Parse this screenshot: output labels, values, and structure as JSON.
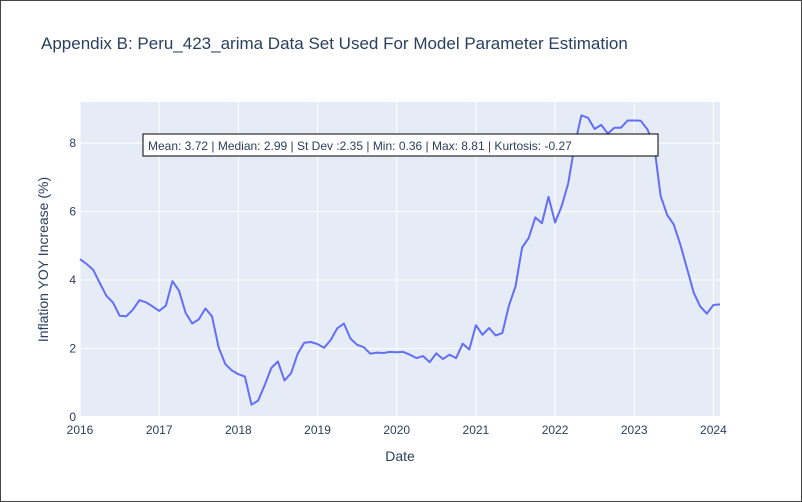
{
  "chart_data": {
    "type": "line",
    "title": "Appendix B: Peru_423_arima Data Set Used For Model Parameter Estimation",
    "xlabel": "Date",
    "ylabel": "Inflation YOY Increase (%)",
    "x_tick_labels": [
      "2016",
      "2017",
      "2018",
      "2019",
      "2020",
      "2021",
      "2022",
      "2023",
      "2024"
    ],
    "y_tick_labels": [
      "0",
      "2",
      "4",
      "6",
      "8"
    ],
    "xlim": [
      "2016-01",
      "2024-01"
    ],
    "ylim": [
      0,
      9.2
    ],
    "grid": true,
    "line_color": "#636efa",
    "plot_bg": "#e5ecf6",
    "annotation": "Mean: 3.72 | Median: 2.99 | St Dev :2.35 | Min: 0.36 | Max: 8.81 | Kurtosis: -0.27",
    "series": [
      {
        "x": [
          "2016-01",
          "2016-02",
          "2016-03",
          "2016-04",
          "2016-05",
          "2016-06",
          "2016-07",
          "2016-08",
          "2016-09",
          "2016-10",
          "2016-11",
          "2016-12",
          "2017-01",
          "2017-02",
          "2017-03",
          "2017-04",
          "2017-05",
          "2017-06",
          "2017-07",
          "2017-08",
          "2017-09",
          "2017-10",
          "2017-11",
          "2017-12",
          "2018-01",
          "2018-02",
          "2018-03",
          "2018-04",
          "2018-05",
          "2018-06",
          "2018-07",
          "2018-08",
          "2018-09",
          "2018-10",
          "2018-11",
          "2018-12",
          "2019-01",
          "2019-02",
          "2019-03",
          "2019-04",
          "2019-05",
          "2019-06",
          "2019-07",
          "2019-08",
          "2019-09",
          "2019-10",
          "2019-11",
          "2019-12",
          "2020-01",
          "2020-02",
          "2020-03",
          "2020-04",
          "2020-05",
          "2020-06",
          "2020-07",
          "2020-08",
          "2020-09",
          "2020-10",
          "2020-11",
          "2020-12",
          "2021-01",
          "2021-02",
          "2021-03",
          "2021-04",
          "2021-05",
          "2021-06",
          "2021-07",
          "2021-08",
          "2021-09",
          "2021-10",
          "2021-11",
          "2021-12",
          "2022-01",
          "2022-02",
          "2022-03",
          "2022-04",
          "2022-05",
          "2022-06",
          "2022-07",
          "2022-08",
          "2022-09",
          "2022-10",
          "2022-11",
          "2022-12",
          "2023-01",
          "2023-02",
          "2023-03",
          "2023-04",
          "2023-05",
          "2023-06",
          "2023-07",
          "2023-08",
          "2023-09",
          "2023-10",
          "2023-11",
          "2023-12",
          "2024-01",
          "2024-02"
        ],
        "values": [
          4.61,
          4.47,
          4.3,
          3.91,
          3.54,
          3.34,
          2.96,
          2.94,
          3.13,
          3.41,
          3.35,
          3.23,
          3.1,
          3.25,
          3.97,
          3.69,
          3.04,
          2.73,
          2.85,
          3.17,
          2.94,
          2.04,
          1.55,
          1.36,
          1.25,
          1.18,
          0.36,
          0.48,
          0.93,
          1.43,
          1.62,
          1.07,
          1.28,
          1.85,
          2.17,
          2.19,
          2.13,
          2.02,
          2.25,
          2.59,
          2.73,
          2.29,
          2.11,
          2.04,
          1.85,
          1.88,
          1.87,
          1.9,
          1.89,
          1.9,
          1.82,
          1.72,
          1.78,
          1.6,
          1.86,
          1.69,
          1.82,
          1.72,
          2.14,
          1.97,
          2.68,
          2.4,
          2.6,
          2.38,
          2.45,
          3.25,
          3.81,
          4.95,
          5.23,
          5.83,
          5.66,
          6.43,
          5.68,
          6.15,
          6.82,
          7.96,
          8.81,
          8.74,
          8.41,
          8.53,
          8.28,
          8.45,
          8.45,
          8.66,
          8.66,
          8.65,
          8.4,
          7.97,
          6.46,
          5.9,
          5.62,
          5.03,
          4.34,
          3.64,
          3.23,
          3.02,
          3.27,
          3.29
        ]
      }
    ]
  }
}
